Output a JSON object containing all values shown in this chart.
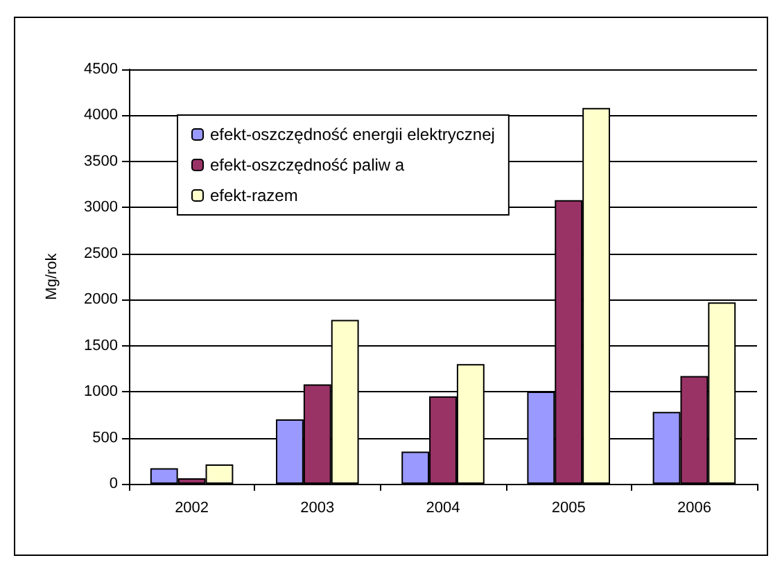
{
  "chart_data": {
    "type": "bar",
    "ylabel": "Mg/rok",
    "categories": [
      "2002",
      "2003",
      "2004",
      "2005",
      "2006"
    ],
    "series": [
      {
        "name": "efekt-oszczędność energii elektrycznej",
        "color": "#9999ff",
        "values": [
          170,
          700,
          350,
          1000,
          780
        ]
      },
      {
        "name": "efekt-oszczędność paliw a",
        "color": "#993366",
        "values": [
          60,
          1080,
          950,
          3080,
          1170
        ]
      },
      {
        "name": "efekt-razem",
        "color": "#ffffcc",
        "values": [
          210,
          1780,
          1300,
          4080,
          1970
        ]
      }
    ],
    "ylim": [
      0,
      4500
    ],
    "yticks": [
      0,
      500,
      1000,
      1500,
      2000,
      2500,
      3000,
      3500,
      4000,
      4500
    ],
    "grid": "y",
    "legend": "top left"
  }
}
